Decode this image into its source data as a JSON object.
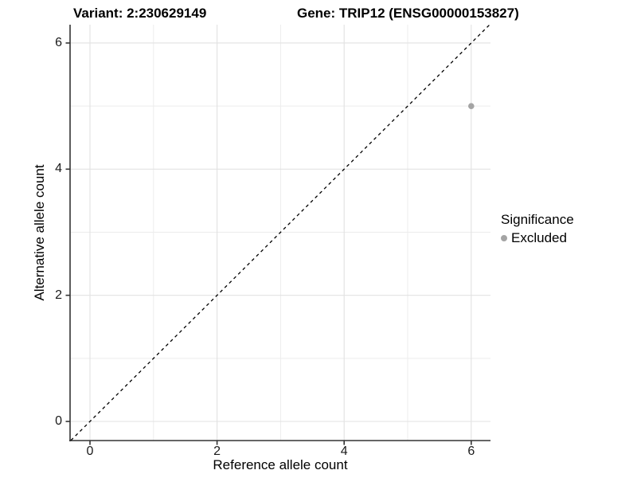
{
  "header": {
    "title_left": "Variant: 2:230629149",
    "title_right": "Gene: TRIP12 (ENSG00000153827)"
  },
  "chart_data": {
    "type": "scatter",
    "title_left": "Variant: 2:230629149",
    "title_right": "Gene: TRIP12 (ENSG00000153827)",
    "xlabel": "Reference allele count",
    "ylabel": "Alternative allele count",
    "xlim": [
      -0.3,
      6.3
    ],
    "ylim": [
      -0.3,
      6.3
    ],
    "x_ticks": [
      0,
      2,
      4,
      6
    ],
    "y_ticks": [
      0,
      2,
      4,
      6
    ],
    "gridlines": {
      "major": [
        0,
        2,
        4,
        6
      ],
      "minor": [
        1,
        3,
        5
      ],
      "on": true
    },
    "reference_line": {
      "kind": "identity",
      "style": "dashed",
      "color": "#000000"
    },
    "series": [
      {
        "name": "Excluded",
        "color": "#a4a4a4",
        "points": [
          {
            "x": 6,
            "y": 5
          }
        ]
      }
    ],
    "legend": {
      "title": "Significance",
      "position": "right",
      "entries": [
        {
          "label": "Excluded",
          "color": "#a4a4a4"
        }
      ]
    },
    "colors": {
      "grid_major": "#e2e2e2",
      "grid_minor": "#ececec",
      "axis_line": "#333333",
      "tick_text": "#1a1a1a"
    }
  }
}
